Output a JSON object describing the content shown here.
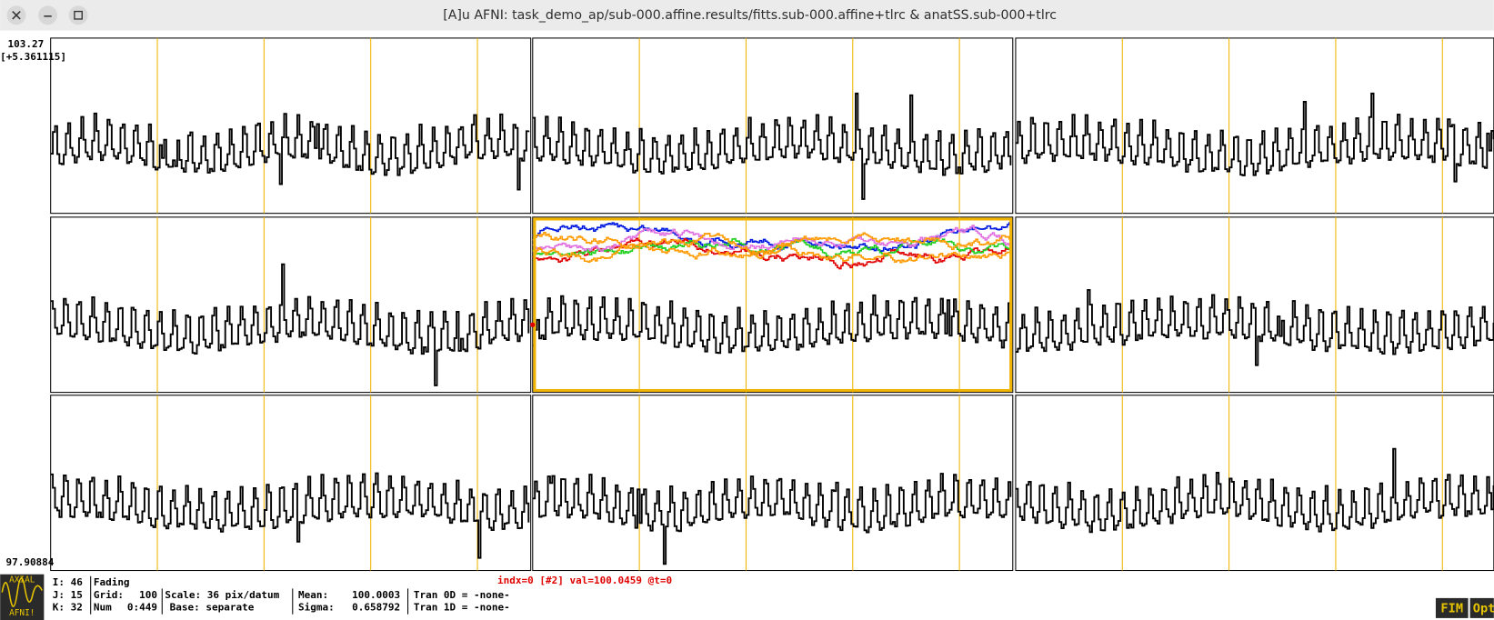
{
  "window": {
    "title": "[A]u AFNI: task_demo_ap/sub-000.affine.results/fitts.sub-000.affine+tlrc & anatSS.sub-000+tlrc"
  },
  "graph": {
    "top_value": "103.27",
    "top_scale": "[+5.361115]",
    "bottom_value": "97.90884"
  },
  "icon": {
    "top": "AXIAL",
    "bottom": "AFNI!"
  },
  "status": {
    "i": "I: 46",
    "j": "J: 15",
    "k": "K: 32",
    "fading": "Fading",
    "grid_label": "Grid:",
    "grid_value": "100",
    "num_label": "Num",
    "num_value": "0:449",
    "scale": "Scale: 36 pix/datum",
    "base": "Base: separate",
    "mean_label": "Mean:",
    "mean_value": "100.0003",
    "sigma_label": "Sigma:",
    "sigma_value": "0.658792",
    "tran0": "Tran 0D = -none-",
    "tran1": "Tran 1D = -none-",
    "index": "indx=0 [#2] val=100.0459 @t=0"
  },
  "buttons": {
    "fim": "FIM",
    "opt": "Opt"
  }
}
